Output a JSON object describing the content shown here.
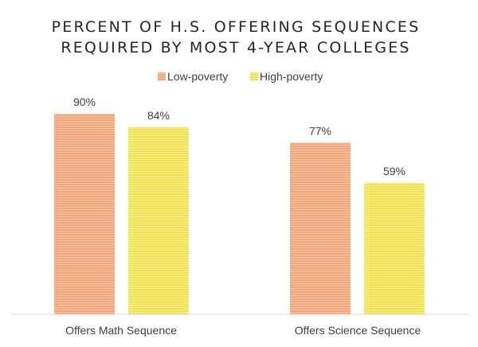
{
  "chart_data": {
    "type": "bar",
    "title": [
      "PERCENT OF H.S. OFFERING SEQUENCES",
      "REQUIRED BY MOST 4-YEAR COLLEGES"
    ],
    "xlabel": "",
    "ylabel": "",
    "categories": [
      "Offers Math Sequence",
      "Offers Science Sequence"
    ],
    "series": [
      {
        "name": "Low-poverty",
        "values": [
          90,
          77
        ],
        "labels": [
          "90%",
          "77%"
        ],
        "color": "#F4A77C",
        "stripe": "#F7C2A3"
      },
      {
        "name": "High-poverty",
        "values": [
          84,
          59
        ],
        "labels": [
          "84%",
          "59%"
        ],
        "color": "#F2E24F",
        "stripe": "#F8EE95"
      }
    ],
    "ylim": [
      0,
      100
    ],
    "grid": false,
    "legend": "top",
    "axis_color": "#D9D9D9"
  }
}
